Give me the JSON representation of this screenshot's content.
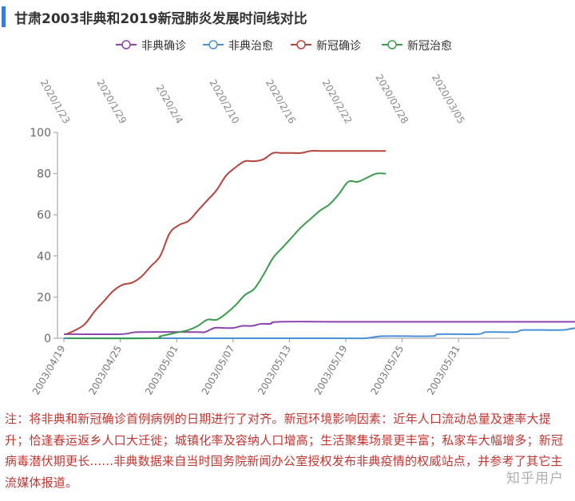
{
  "title": "甘肃2003非典和2019新冠肺炎发展时间线对比",
  "note": "注：将非典和新冠确诊首例病例的日期进行了对齐。新冠环境影响因素：近年人口流动总量及速率大提升；恰逢春运返乡人口大迁徙；城镇化率及容纳人口增高；生活聚集场景更丰富；私家车大幅增多；新冠病毒潜伏期更长......非典数据来自当时国务院新闻办公室授权发布非典疫情的权威站点，并参考了其它主流媒体报道。",
  "watermark": "知乎用户",
  "chart_data": {
    "type": "line",
    "title": "甘肃2003非典和2019新冠肺炎发展时间线对比",
    "ylim": [
      0,
      100
    ],
    "yticks": [
      0,
      20,
      40,
      60,
      80,
      100
    ],
    "grid": false,
    "legend_position": "top-center",
    "x_axis_bottom": {
      "ticks": [
        "2003/04/19",
        "2003/04/25",
        "2003/05/01",
        "2003/05/07",
        "2003/05/13",
        "2003/05/19",
        "2003/05/25",
        "2003/05/31"
      ],
      "range_days": 80,
      "tick_step_days": 6
    },
    "x_axis_top": {
      "ticks": [
        "2020/1/23",
        "2020/1/29",
        "2020/2/4",
        "2020/2/10",
        "2020/2/16",
        "2020/2/22",
        "2020/02/28",
        "2020/03/05"
      ],
      "tick_step_days": 6
    },
    "series": [
      {
        "name": "非典确诊",
        "color": "#8e44ad",
        "axis": "bottom",
        "points": [
          [
            0,
            2
          ],
          [
            6,
            2
          ],
          [
            8,
            3
          ],
          [
            14,
            3
          ],
          [
            15,
            3
          ],
          [
            16,
            5
          ],
          [
            17,
            5
          ],
          [
            18,
            5
          ],
          [
            19,
            6
          ],
          [
            20,
            6
          ],
          [
            21,
            7
          ],
          [
            22,
            7
          ],
          [
            23,
            8
          ],
          [
            30,
            8
          ],
          [
            40,
            8
          ],
          [
            50,
            8
          ],
          [
            60,
            8
          ],
          [
            70,
            8
          ],
          [
            80,
            8
          ]
        ]
      },
      {
        "name": "非典治愈",
        "color": "#4a90d9",
        "axis": "bottom",
        "points": [
          [
            0,
            0
          ],
          [
            28,
            0
          ],
          [
            32,
            0
          ],
          [
            34,
            1
          ],
          [
            39,
            1
          ],
          [
            40,
            2
          ],
          [
            44,
            2
          ],
          [
            45,
            3
          ],
          [
            48,
            3
          ],
          [
            49,
            4
          ],
          [
            53,
            4
          ],
          [
            55,
            5
          ],
          [
            62,
            5
          ],
          [
            64,
            5
          ],
          [
            67,
            6
          ],
          [
            70,
            7
          ]
        ]
      },
      {
        "name": "新冠确诊",
        "color": "#b5443c",
        "axis": "top",
        "points": [
          [
            0,
            2
          ],
          [
            1,
            4
          ],
          [
            2,
            7
          ],
          [
            3,
            13
          ],
          [
            4,
            18
          ],
          [
            5,
            23
          ],
          [
            6,
            26
          ],
          [
            7,
            27
          ],
          [
            8,
            30
          ],
          [
            9,
            35
          ],
          [
            10,
            40
          ],
          [
            11,
            51
          ],
          [
            12,
            55
          ],
          [
            13,
            57
          ],
          [
            14,
            62
          ],
          [
            15,
            67
          ],
          [
            16,
            72
          ],
          [
            17,
            79
          ],
          [
            18,
            83
          ],
          [
            19,
            86
          ],
          [
            20,
            86
          ],
          [
            21,
            87
          ],
          [
            22,
            90
          ],
          [
            23,
            90
          ],
          [
            24,
            90
          ],
          [
            25,
            90
          ],
          [
            26,
            91
          ],
          [
            27,
            91
          ],
          [
            28,
            91
          ],
          [
            29,
            91
          ],
          [
            30,
            91
          ],
          [
            31,
            91
          ],
          [
            32,
            91
          ],
          [
            33,
            91
          ],
          [
            34,
            91
          ]
        ]
      },
      {
        "name": "新冠治愈",
        "color": "#3a9c4c",
        "axis": "top",
        "points": [
          [
            0,
            0
          ],
          [
            9,
            0
          ],
          [
            10,
            1
          ],
          [
            11,
            2
          ],
          [
            12,
            3
          ],
          [
            13,
            4
          ],
          [
            14,
            6
          ],
          [
            15,
            9
          ],
          [
            16,
            9
          ],
          [
            17,
            12
          ],
          [
            18,
            16
          ],
          [
            19,
            21
          ],
          [
            20,
            24
          ],
          [
            21,
            31
          ],
          [
            22,
            39
          ],
          [
            23,
            44
          ],
          [
            24,
            49
          ],
          [
            25,
            54
          ],
          [
            26,
            58
          ],
          [
            27,
            62
          ],
          [
            28,
            65
          ],
          [
            29,
            70
          ],
          [
            30,
            76
          ],
          [
            31,
            76
          ],
          [
            32,
            78
          ],
          [
            33,
            80
          ],
          [
            34,
            80
          ]
        ]
      }
    ]
  }
}
